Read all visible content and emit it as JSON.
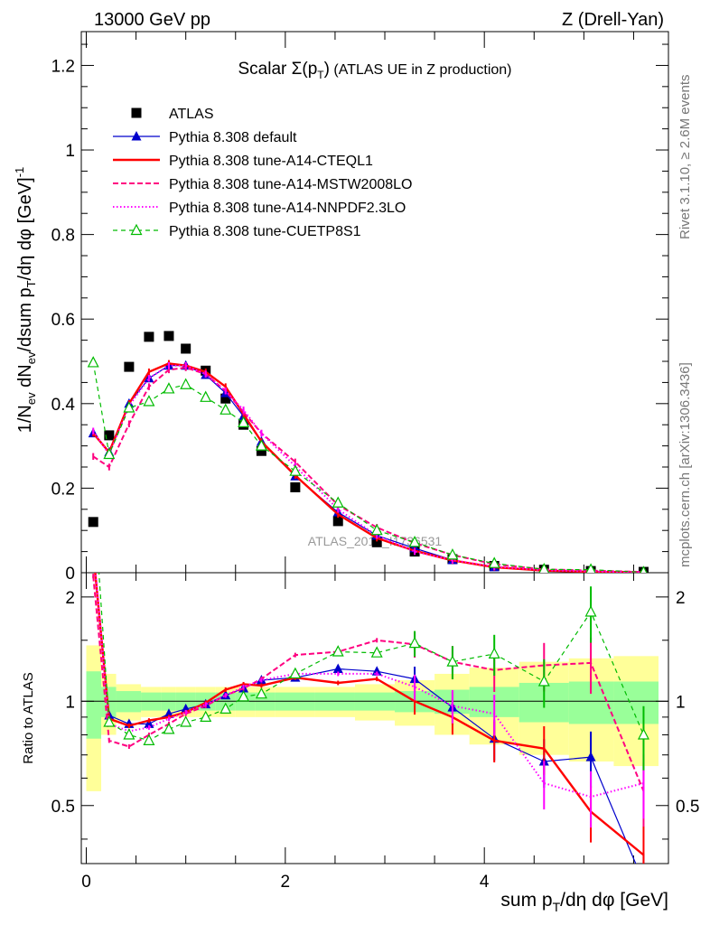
{
  "header": {
    "left": "13000 GeV pp",
    "right": "Z (Drell-Yan)"
  },
  "side_text": {
    "rivet": "Rivet 3.1.10, ≥ 2.6M events",
    "mcplots": "mcplots.cern.ch [arXiv:1306.3436]"
  },
  "watermark": "ATLAS_2019_I1736531",
  "main_title_prefix": "Scalar ",
  "main_title_sigma": "Σ(p",
  "main_title_sub": "T",
  "main_title_close": ")",
  "main_title_suffix": " (ATLAS UE in Z production)",
  "y_label_top": "1/N_ev dN_ev/dsum p_T/dη dφ [GeV]^-1",
  "y_label_bottom": "Ratio to ATLAS",
  "x_label": "sum p_T/dη dφ [GeV]",
  "colors": {
    "atlas": "#000000",
    "default": "#0000cc",
    "cteql1": "#ff0000",
    "mstw": "#ff0080",
    "nnpdf": "#ff00ff",
    "cuetp": "#00bb00",
    "band_inner": "#99ff99",
    "band_outer": "#ffff99"
  },
  "chart_data": [
    {
      "type": "scatter",
      "panel": "main",
      "xlim": [
        -0.05,
        5.85
      ],
      "ylim": [
        0,
        1.28
      ],
      "yticks": [
        0,
        0.2,
        0.4,
        0.6,
        0.8,
        1,
        1.2
      ],
      "ytick_labels": [
        "0",
        "0.2",
        "0.4",
        "0.6",
        "0.8",
        "1",
        "1.2"
      ],
      "x": [
        0.07,
        0.23,
        0.43,
        0.63,
        0.83,
        1.0,
        1.2,
        1.4,
        1.58,
        1.76,
        2.1,
        2.53,
        2.92,
        3.3,
        3.68,
        4.1,
        4.6,
        5.07,
        5.6
      ],
      "series": [
        {
          "name": "ATLAS",
          "key": "atlas",
          "style": "marker-square",
          "values": [
            0.12,
            0.325,
            0.487,
            0.558,
            0.56,
            0.53,
            0.478,
            0.412,
            0.35,
            0.288,
            0.202,
            0.122,
            0.072,
            0.05,
            0.032,
            0.016,
            0.007,
            0.004,
            0.002
          ]
        },
        {
          "name": "Pythia 8.308 default",
          "key": "default",
          "style": "solid-triangle",
          "values": [
            0.33,
            0.285,
            0.4,
            0.46,
            0.49,
            0.49,
            0.468,
            0.425,
            0.37,
            0.31,
            0.228,
            0.143,
            0.088,
            0.058,
            0.03,
            0.013,
            0.005,
            0.003,
            0.001
          ]
        },
        {
          "name": "Pythia 8.308 tune-A14-CTEQL1",
          "key": "cteql1",
          "style": "solid-thick",
          "values": [
            0.33,
            0.285,
            0.4,
            0.475,
            0.495,
            0.49,
            0.475,
            0.44,
            0.375,
            0.31,
            0.23,
            0.138,
            0.082,
            0.052,
            0.029,
            0.013,
            0.005,
            0.002,
            0.001
          ]
        },
        {
          "name": "Pythia 8.308 tune-A14-MSTW2008LO",
          "key": "mstw",
          "style": "dashed",
          "values": [
            0.275,
            0.25,
            0.352,
            0.44,
            0.48,
            0.485,
            0.47,
            0.43,
            0.38,
            0.33,
            0.262,
            0.16,
            0.107,
            0.07,
            0.042,
            0.02,
            0.008,
            0.005,
            0.002
          ]
        },
        {
          "name": "Pythia 8.308 tune-A14-NNPDF2.3LO",
          "key": "nnpdf",
          "style": "dotted",
          "values": [
            0.335,
            0.28,
            0.395,
            0.46,
            0.49,
            0.49,
            0.47,
            0.43,
            0.385,
            0.33,
            0.252,
            0.15,
            0.088,
            0.05,
            0.03,
            0.014,
            0.006,
            0.003,
            0.001
          ]
        },
        {
          "name": "Pythia 8.308 tune-CUETP8S1",
          "key": "cuetp",
          "style": "dashed-open-triangle",
          "values": [
            0.497,
            0.28,
            0.39,
            0.405,
            0.435,
            0.445,
            0.415,
            0.385,
            0.355,
            0.3,
            0.24,
            0.165,
            0.1,
            0.072,
            0.042,
            0.022,
            0.008,
            0.007,
            0.001
          ]
        }
      ]
    },
    {
      "type": "line",
      "panel": "ratio",
      "xlim": [
        -0.05,
        5.85
      ],
      "ylim": [
        0.34,
        2.35
      ],
      "yticks": [
        0.5,
        1,
        2
      ],
      "ytick_labels": [
        "0.5",
        "1",
        "2"
      ],
      "xticks": [
        0,
        2,
        4
      ],
      "xtick_labels": [
        "0",
        "2",
        "4"
      ],
      "x": [
        0.07,
        0.23,
        0.43,
        0.63,
        0.83,
        1.0,
        1.2,
        1.4,
        1.58,
        1.76,
        2.1,
        2.53,
        2.92,
        3.3,
        3.68,
        4.1,
        4.6,
        5.07,
        5.6
      ],
      "band_edges": [
        0.0,
        0.15,
        0.3,
        0.55,
        0.75,
        0.9,
        1.1,
        1.3,
        1.5,
        1.7,
        1.9,
        2.3,
        2.7,
        3.1,
        3.5,
        3.85,
        4.35,
        4.85,
        5.3,
        5.75
      ],
      "band_inner": [
        0.22,
        0.1,
        0.07,
        0.06,
        0.06,
        0.06,
        0.06,
        0.06,
        0.06,
        0.06,
        0.06,
        0.06,
        0.06,
        0.07,
        0.08,
        0.1,
        0.13,
        0.14,
        0.14
      ],
      "band_outer": [
        0.45,
        0.2,
        0.12,
        0.1,
        0.1,
        0.1,
        0.1,
        0.1,
        0.1,
        0.1,
        0.1,
        0.1,
        0.12,
        0.15,
        0.2,
        0.25,
        0.3,
        0.33,
        0.35
      ],
      "series": [
        {
          "name": "Pythia 8.308 default",
          "key": "default",
          "style": "solid-triangle",
          "values": [
            2.7,
            0.91,
            0.86,
            0.86,
            0.92,
            0.95,
            0.98,
            1.04,
            1.09,
            1.15,
            1.17,
            1.24,
            1.22,
            1.16,
            0.96,
            0.78,
            0.67,
            0.69,
            0.3
          ]
        },
        {
          "name": "Pythia 8.308 tune-A14-CTEQL1",
          "key": "cteql1",
          "style": "solid-thick",
          "values": [
            2.7,
            0.89,
            0.85,
            0.88,
            0.9,
            0.93,
            0.99,
            1.08,
            1.12,
            1.11,
            1.17,
            1.13,
            1.16,
            1.0,
            0.9,
            0.77,
            0.73,
            0.48,
            0.36
          ]
        },
        {
          "name": "Pythia 8.308 tune-A14-MSTW2008LO",
          "key": "mstw",
          "style": "dashed",
          "values": [
            2.3,
            0.77,
            0.74,
            0.8,
            0.86,
            0.92,
            0.97,
            1.04,
            1.09,
            1.16,
            1.36,
            1.39,
            1.5,
            1.46,
            1.3,
            1.23,
            1.27,
            1.29,
            0.55
          ]
        },
        {
          "name": "Pythia 8.308 tune-A14-NNPDF2.3LO",
          "key": "nnpdf",
          "style": "dotted",
          "values": [
            2.8,
            0.86,
            0.82,
            0.84,
            0.89,
            0.93,
            0.98,
            1.04,
            1.1,
            1.15,
            1.2,
            1.2,
            1.2,
            1.1,
            0.97,
            0.92,
            0.58,
            0.53,
            0.58
          ]
        },
        {
          "name": "Pythia 8.308 tune-CUETP8S1",
          "key": "cuetp",
          "style": "dashed-open-triangle",
          "values": [
            4.1,
            0.87,
            0.8,
            0.77,
            0.83,
            0.87,
            0.9,
            0.95,
            1.03,
            1.05,
            1.2,
            1.39,
            1.38,
            1.47,
            1.3,
            1.37,
            1.14,
            1.81,
            0.8
          ]
        }
      ]
    }
  ]
}
